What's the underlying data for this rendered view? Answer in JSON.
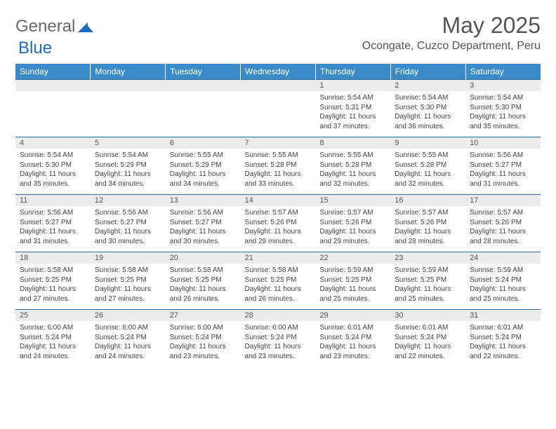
{
  "logo": {
    "word1": "General",
    "word2": "Blue"
  },
  "title": "May 2025",
  "location": "Ocongate, Cuzco Department, Peru",
  "colors": {
    "header_bg": "#3b8bc9",
    "header_text": "#ffffff",
    "border": "#2f6fa3",
    "daynum_bg": "#ececec",
    "logo_blue": "#1e6bb8",
    "text": "#444444"
  },
  "day_headers": [
    "Sunday",
    "Monday",
    "Tuesday",
    "Wednesday",
    "Thursday",
    "Friday",
    "Saturday"
  ],
  "weeks": [
    [
      {
        "n": "",
        "sr": "",
        "ss": "",
        "dl": ""
      },
      {
        "n": "",
        "sr": "",
        "ss": "",
        "dl": ""
      },
      {
        "n": "",
        "sr": "",
        "ss": "",
        "dl": ""
      },
      {
        "n": "",
        "sr": "",
        "ss": "",
        "dl": ""
      },
      {
        "n": "1",
        "sr": "Sunrise: 5:54 AM",
        "ss": "Sunset: 5:31 PM",
        "dl": "Daylight: 11 hours and 37 minutes."
      },
      {
        "n": "2",
        "sr": "Sunrise: 5:54 AM",
        "ss": "Sunset: 5:30 PM",
        "dl": "Daylight: 11 hours and 36 minutes."
      },
      {
        "n": "3",
        "sr": "Sunrise: 5:54 AM",
        "ss": "Sunset: 5:30 PM",
        "dl": "Daylight: 11 hours and 35 minutes."
      }
    ],
    [
      {
        "n": "4",
        "sr": "Sunrise: 5:54 AM",
        "ss": "Sunset: 5:30 PM",
        "dl": "Daylight: 11 hours and 35 minutes."
      },
      {
        "n": "5",
        "sr": "Sunrise: 5:54 AM",
        "ss": "Sunset: 5:29 PM",
        "dl": "Daylight: 11 hours and 34 minutes."
      },
      {
        "n": "6",
        "sr": "Sunrise: 5:55 AM",
        "ss": "Sunset: 5:29 PM",
        "dl": "Daylight: 11 hours and 34 minutes."
      },
      {
        "n": "7",
        "sr": "Sunrise: 5:55 AM",
        "ss": "Sunset: 5:28 PM",
        "dl": "Daylight: 11 hours and 33 minutes."
      },
      {
        "n": "8",
        "sr": "Sunrise: 5:55 AM",
        "ss": "Sunset: 5:28 PM",
        "dl": "Daylight: 11 hours and 32 minutes."
      },
      {
        "n": "9",
        "sr": "Sunrise: 5:55 AM",
        "ss": "Sunset: 5:28 PM",
        "dl": "Daylight: 11 hours and 32 minutes."
      },
      {
        "n": "10",
        "sr": "Sunrise: 5:56 AM",
        "ss": "Sunset: 5:27 PM",
        "dl": "Daylight: 11 hours and 31 minutes."
      }
    ],
    [
      {
        "n": "11",
        "sr": "Sunrise: 5:56 AM",
        "ss": "Sunset: 5:27 PM",
        "dl": "Daylight: 11 hours and 31 minutes."
      },
      {
        "n": "12",
        "sr": "Sunrise: 5:56 AM",
        "ss": "Sunset: 5:27 PM",
        "dl": "Daylight: 11 hours and 30 minutes."
      },
      {
        "n": "13",
        "sr": "Sunrise: 5:56 AM",
        "ss": "Sunset: 5:27 PM",
        "dl": "Daylight: 11 hours and 30 minutes."
      },
      {
        "n": "14",
        "sr": "Sunrise: 5:57 AM",
        "ss": "Sunset: 5:26 PM",
        "dl": "Daylight: 11 hours and 29 minutes."
      },
      {
        "n": "15",
        "sr": "Sunrise: 5:57 AM",
        "ss": "Sunset: 5:26 PM",
        "dl": "Daylight: 11 hours and 29 minutes."
      },
      {
        "n": "16",
        "sr": "Sunrise: 5:57 AM",
        "ss": "Sunset: 5:26 PM",
        "dl": "Daylight: 11 hours and 28 minutes."
      },
      {
        "n": "17",
        "sr": "Sunrise: 5:57 AM",
        "ss": "Sunset: 5:26 PM",
        "dl": "Daylight: 11 hours and 28 minutes."
      }
    ],
    [
      {
        "n": "18",
        "sr": "Sunrise: 5:58 AM",
        "ss": "Sunset: 5:25 PM",
        "dl": "Daylight: 11 hours and 27 minutes."
      },
      {
        "n": "19",
        "sr": "Sunrise: 5:58 AM",
        "ss": "Sunset: 5:25 PM",
        "dl": "Daylight: 11 hours and 27 minutes."
      },
      {
        "n": "20",
        "sr": "Sunrise: 5:58 AM",
        "ss": "Sunset: 5:25 PM",
        "dl": "Daylight: 11 hours and 26 minutes."
      },
      {
        "n": "21",
        "sr": "Sunrise: 5:58 AM",
        "ss": "Sunset: 5:25 PM",
        "dl": "Daylight: 11 hours and 26 minutes."
      },
      {
        "n": "22",
        "sr": "Sunrise: 5:59 AM",
        "ss": "Sunset: 5:25 PM",
        "dl": "Daylight: 11 hours and 25 minutes."
      },
      {
        "n": "23",
        "sr": "Sunrise: 5:59 AM",
        "ss": "Sunset: 5:25 PM",
        "dl": "Daylight: 11 hours and 25 minutes."
      },
      {
        "n": "24",
        "sr": "Sunrise: 5:59 AM",
        "ss": "Sunset: 5:24 PM",
        "dl": "Daylight: 11 hours and 25 minutes."
      }
    ],
    [
      {
        "n": "25",
        "sr": "Sunrise: 6:00 AM",
        "ss": "Sunset: 5:24 PM",
        "dl": "Daylight: 11 hours and 24 minutes."
      },
      {
        "n": "26",
        "sr": "Sunrise: 6:00 AM",
        "ss": "Sunset: 5:24 PM",
        "dl": "Daylight: 11 hours and 24 minutes."
      },
      {
        "n": "27",
        "sr": "Sunrise: 6:00 AM",
        "ss": "Sunset: 5:24 PM",
        "dl": "Daylight: 11 hours and 23 minutes."
      },
      {
        "n": "28",
        "sr": "Sunrise: 6:00 AM",
        "ss": "Sunset: 5:24 PM",
        "dl": "Daylight: 11 hours and 23 minutes."
      },
      {
        "n": "29",
        "sr": "Sunrise: 6:01 AM",
        "ss": "Sunset: 5:24 PM",
        "dl": "Daylight: 11 hours and 23 minutes."
      },
      {
        "n": "30",
        "sr": "Sunrise: 6:01 AM",
        "ss": "Sunset: 5:24 PM",
        "dl": "Daylight: 11 hours and 22 minutes."
      },
      {
        "n": "31",
        "sr": "Sunrise: 6:01 AM",
        "ss": "Sunset: 5:24 PM",
        "dl": "Daylight: 11 hours and 22 minutes."
      }
    ]
  ]
}
